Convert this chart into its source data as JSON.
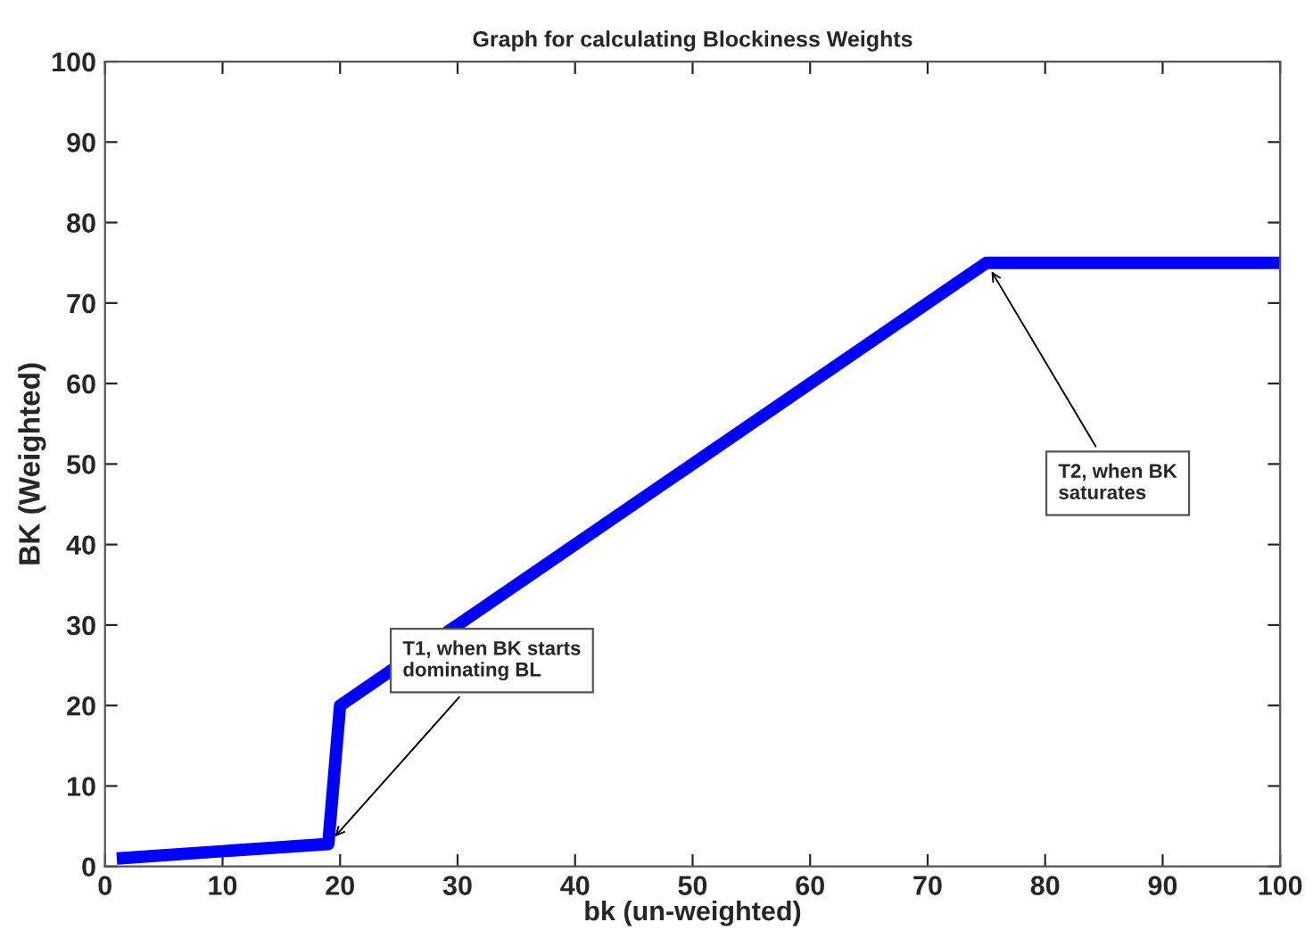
{
  "chart_data": {
    "type": "line",
    "title": "Graph for calculating Blockiness Weights",
    "xlabel": "bk (un-weighted)",
    "ylabel": "BK (Weighted)",
    "x": [
      1,
      19,
      20,
      75,
      100
    ],
    "series": [
      {
        "color": "#0000ff",
        "values": [
          1,
          2.8,
          20,
          75,
          75
        ]
      }
    ],
    "xlim": [
      0,
      100
    ],
    "ylim": [
      0,
      100
    ],
    "xticks": [
      0,
      10,
      20,
      30,
      40,
      50,
      60,
      70,
      80,
      90,
      100
    ],
    "yticks": [
      0,
      10,
      20,
      30,
      40,
      50,
      60,
      70,
      80,
      90,
      100
    ],
    "grid": false,
    "marker": "none",
    "line_style": "solid",
    "annotations": [
      {
        "text": "T1, when BK starts\ndominating BL",
        "x": 19,
        "y": 2.8
      },
      {
        "text": "T2, when BK\nsaturates",
        "x": 75,
        "y": 75
      }
    ]
  }
}
